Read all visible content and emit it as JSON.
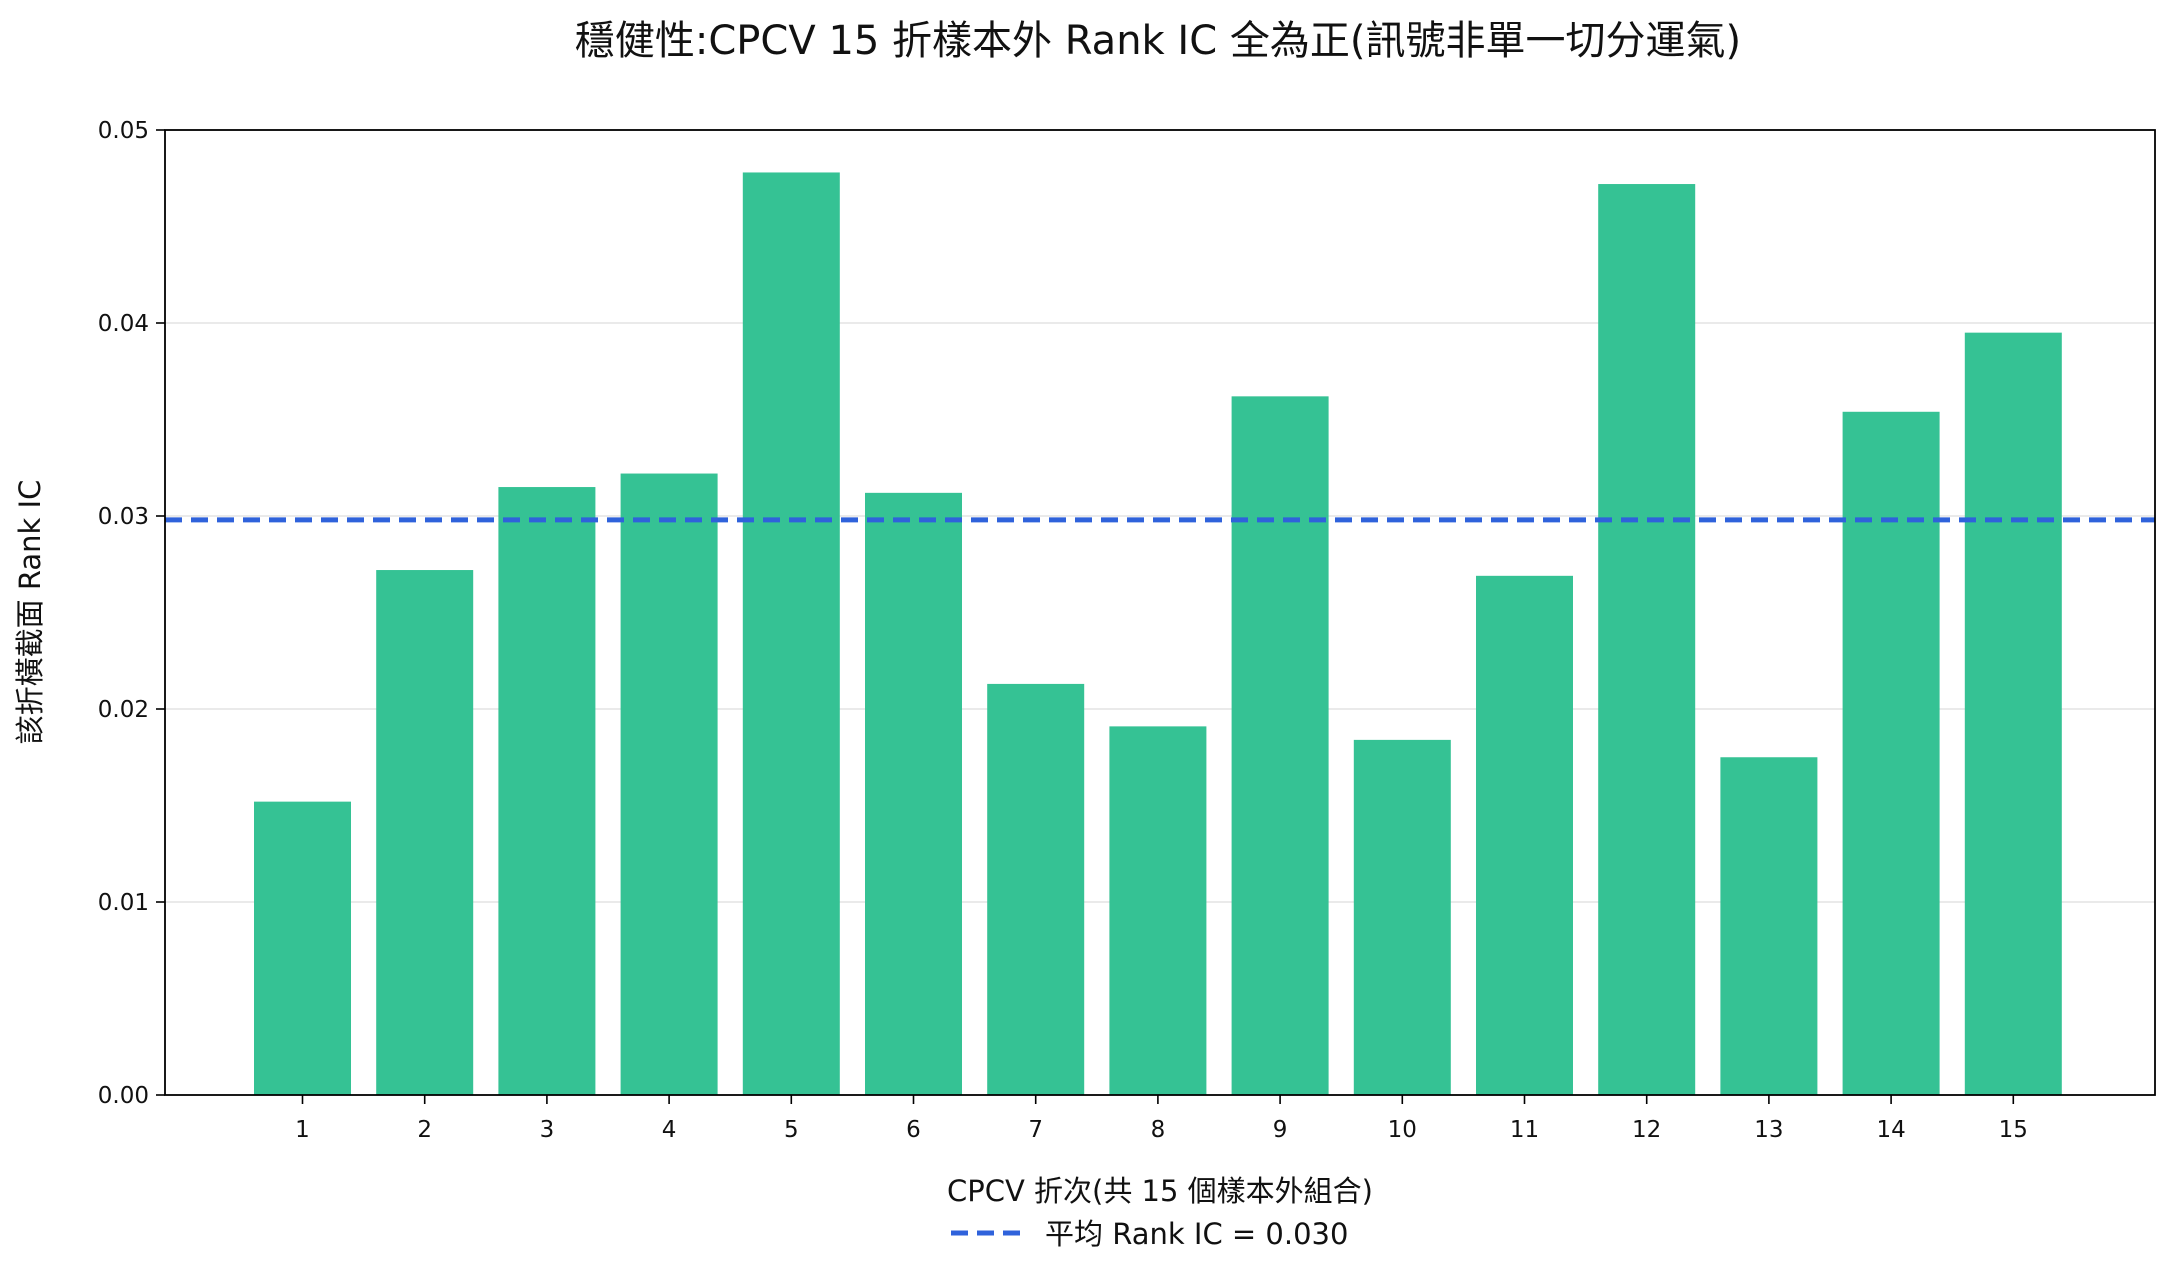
{
  "chart_data": {
    "type": "bar",
    "title": "穩健性:CPCV 15 折樣本外 Rank IC 全為正(訊號非單一切分運氣)",
    "xlabel": "CPCV 折次(共 15 個樣本外組合)",
    "ylabel": "該折橫截面 Rank IC",
    "categories": [
      "1",
      "2",
      "3",
      "4",
      "5",
      "6",
      "7",
      "8",
      "9",
      "10",
      "11",
      "12",
      "13",
      "14",
      "15"
    ],
    "values": [
      0.0152,
      0.0272,
      0.0315,
      0.0322,
      0.0478,
      0.0312,
      0.0213,
      0.0191,
      0.0362,
      0.0184,
      0.0269,
      0.0472,
      0.0175,
      0.0354,
      0.0395
    ],
    "ylim": [
      0,
      0.05
    ],
    "yticks": [
      "0.00",
      "0.01",
      "0.02",
      "0.03",
      "0.04",
      "0.05"
    ],
    "grid": "horizontal",
    "bar_color": "#35c294",
    "mean_line": {
      "value": 0.0298,
      "label": "平均 Rank IC = 0.030",
      "color": "#2f62db"
    },
    "legend_position": "bottom-center"
  }
}
